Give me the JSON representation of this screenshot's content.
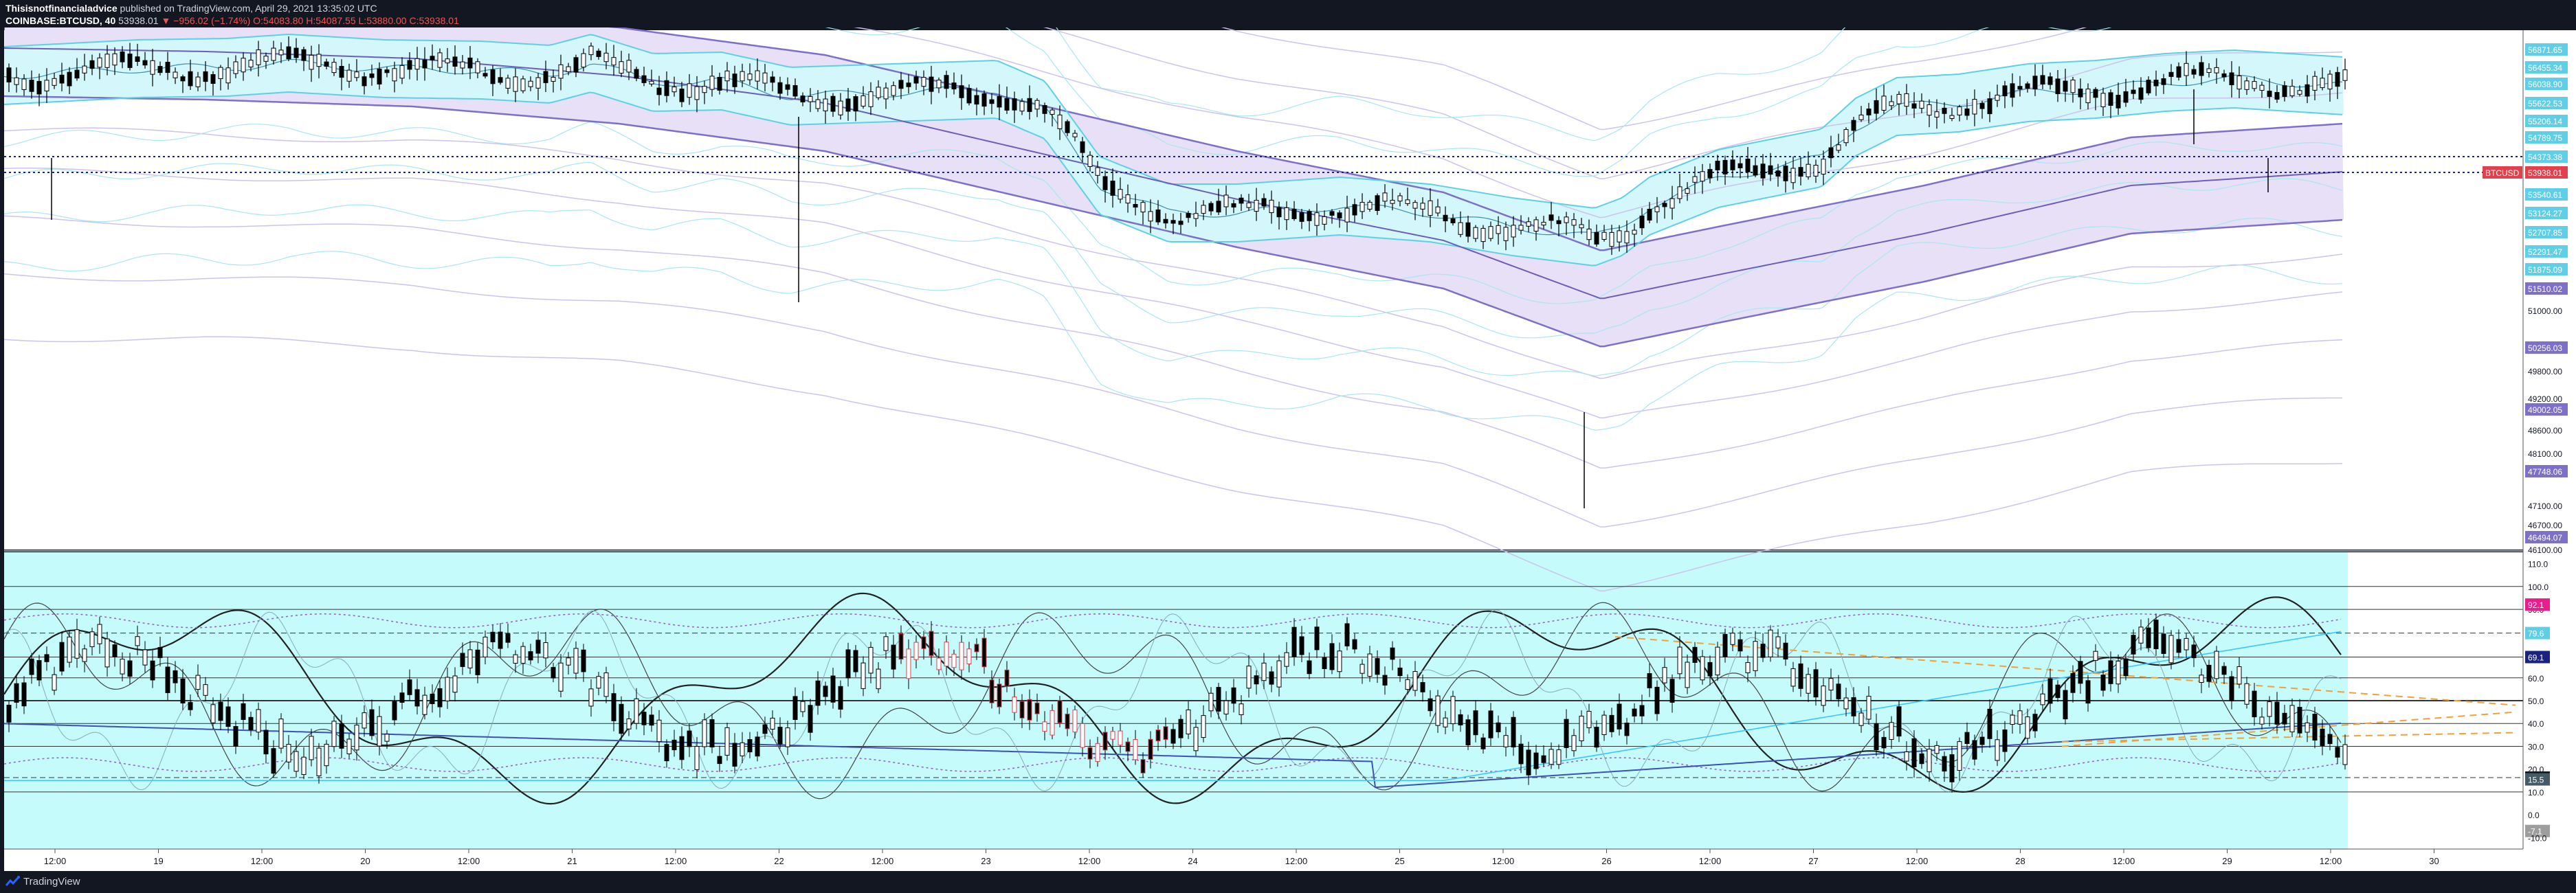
{
  "header": {
    "publisher": "Thisisnotfinancialadvice",
    "published_text": "published on TradingView.com, April 29, 2021 13:35:02 UTC",
    "symbol": "COINBASE:BTCUSD, 40",
    "last": "53938.01",
    "change": "▼ −956.02 (−1.74%)",
    "open": "O:54083.80",
    "high": "H:54087.55",
    "low": "L:53880.00",
    "close": "C:53938.01"
  },
  "footer": {
    "brand": "TradingView"
  },
  "colors": {
    "background": "#ffffff",
    "frame": "#131722",
    "osc_bg": "#c5fbfb",
    "cyan_band": "#d3f7fa",
    "purple_band": "#e8e0f6",
    "purple_line": "#7e70c8",
    "cyan_line": "#5ecfe6",
    "candle": "#000000",
    "red": "#e0414c",
    "orange": "#f2a03a",
    "magenta_label": "#e91e8c"
  },
  "price_axis": {
    "ticks": [
      "56871.65",
      "56455.34",
      "56038.90",
      "55622.53",
      "55206.14",
      "54789.75",
      "54373.38",
      "53938.01",
      "53540.61",
      "53124.27",
      "52707.85",
      "52291.47",
      "51875.09",
      "51510.02",
      "51000.00",
      "50256.03",
      "49800.00",
      "49200.00",
      "49002.05",
      "48600.00",
      "48100.00",
      "47748.06",
      "47100.00",
      "46700.00",
      "46494.07",
      "46100.00"
    ],
    "current_label": "BTCUSD",
    "current_value": "53938.01",
    "dotted_level": "54373.38"
  },
  "osc_axis": {
    "ticks": [
      "110.0",
      "100.0",
      "90.0",
      "79.6",
      "69.1",
      "60.0",
      "50.0",
      "40.0",
      "30.0",
      "20.0",
      "16.3",
      "15.5",
      "10.0",
      "0.0",
      "-7.1",
      "-10.0"
    ],
    "badges": [
      "92.1",
      "79.6",
      "69.1",
      "16.3",
      "15.5",
      "-7.1"
    ]
  },
  "time_axis": {
    "ticks": [
      "12:00",
      "19",
      "12:00",
      "20",
      "12:00",
      "21",
      "12:00",
      "22",
      "12:00",
      "23",
      "12:00",
      "24",
      "12:00",
      "25",
      "12:00",
      "26",
      "12:00",
      "27",
      "12:00",
      "28",
      "12:00",
      "29",
      "12:00",
      "30"
    ]
  }
}
